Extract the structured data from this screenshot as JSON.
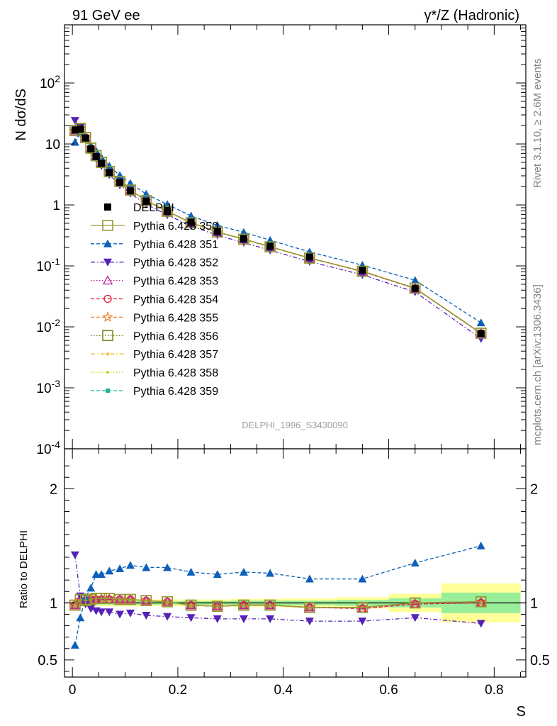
{
  "header": {
    "left_title": "91 GeV ee",
    "right_title": "γ*/Z (Hadronic)"
  },
  "side_labels": {
    "rivet": "Rivet 3.1.10, ≥ 2.6M events",
    "mcplots": "mcplots.cern.ch [arXiv:1306.3436]"
  },
  "watermark": "DELPHI_1996_S3430090",
  "chart_data": [
    {
      "type": "scatter",
      "panel": "main",
      "ylabel": "N dσ/dS",
      "xlabel": "",
      "yscale": "log",
      "ylim": [
        0.0001,
        900
      ],
      "xlim": [
        -0.015,
        0.86
      ],
      "y_tick_labels": [
        "10^-4",
        "10^-3",
        "10^-2",
        "10^-1",
        "1",
        "10",
        "10^2"
      ],
      "x": [
        0.005,
        0.015,
        0.025,
        0.035,
        0.045,
        0.055,
        0.07,
        0.09,
        0.11,
        0.14,
        0.18,
        0.225,
        0.275,
        0.325,
        0.375,
        0.45,
        0.55,
        0.65,
        0.775
      ],
      "series": [
        {
          "name": "DELPHI",
          "color": "#000000",
          "marker": "square-filled",
          "values": [
            17,
            17.5,
            12.5,
            8.3,
            6.2,
            4.8,
            3.4,
            2.35,
            1.7,
            1.15,
            0.78,
            0.52,
            0.37,
            0.28,
            0.21,
            0.14,
            0.085,
            0.043,
            0.0078
          ]
        },
        {
          "name": "Pythia 6.428 350",
          "color": "#999933",
          "marker": "square-open",
          "line": "solid",
          "ratio": [
            0.98,
            1.03,
            1.02,
            1.03,
            1.04,
            1.04,
            1.04,
            1.03,
            1.03,
            1.02,
            1.01,
            0.98,
            0.97,
            0.98,
            0.98,
            0.96,
            0.96,
            1.0,
            1.01
          ]
        },
        {
          "name": "Pythia 6.428 351",
          "color": "#0d5fba",
          "marker": "triangle-up-filled",
          "line": "dashed",
          "ratio": [
            0.63,
            0.87,
            1.05,
            1.13,
            1.25,
            1.25,
            1.28,
            1.3,
            1.33,
            1.31,
            1.31,
            1.27,
            1.25,
            1.27,
            1.26,
            1.21,
            1.21,
            1.35,
            1.5
          ]
        },
        {
          "name": "Pythia 6.428 352",
          "color": "#5522b8",
          "marker": "triangle-down-filled",
          "line": "dashdot",
          "ratio": [
            1.42,
            1.06,
            0.99,
            0.95,
            0.93,
            0.92,
            0.92,
            0.9,
            0.91,
            0.89,
            0.88,
            0.87,
            0.86,
            0.86,
            0.86,
            0.84,
            0.84,
            0.87,
            0.82
          ]
        },
        {
          "name": "Pythia 6.428 353",
          "color": "#bb2299",
          "marker": "triangle-up-open",
          "line": "dotted",
          "ratio": [
            0.98,
            1.02,
            1.02,
            1.03,
            1.03,
            1.03,
            1.03,
            1.03,
            1.03,
            1.02,
            1.01,
            0.98,
            0.97,
            0.98,
            0.98,
            0.96,
            0.95,
            0.99,
            1.0
          ]
        },
        {
          "name": "Pythia 6.428 354",
          "color": "#e8182e",
          "marker": "circle-open",
          "line": "dashed",
          "ratio": [
            0.98,
            1.02,
            1.02,
            1.03,
            1.03,
            1.03,
            1.03,
            1.03,
            1.03,
            1.02,
            1.01,
            0.98,
            0.97,
            0.98,
            0.98,
            0.96,
            0.95,
            0.99,
            1.0
          ]
        },
        {
          "name": "Pythia 6.428 355",
          "color": "#f07c28",
          "marker": "star-open",
          "line": "dashed",
          "ratio": [
            0.98,
            1.03,
            1.02,
            1.03,
            1.04,
            1.04,
            1.04,
            1.03,
            1.03,
            1.02,
            1.01,
            0.98,
            0.97,
            0.98,
            0.98,
            0.96,
            0.96,
            1.0,
            1.01
          ]
        },
        {
          "name": "Pythia 6.428 356",
          "color": "#7a8c1c",
          "marker": "square-open",
          "line": "dotted",
          "ratio": [
            0.98,
            1.03,
            1.02,
            1.03,
            1.04,
            1.04,
            1.04,
            1.03,
            1.03,
            1.02,
            1.01,
            0.98,
            0.97,
            0.98,
            0.98,
            0.96,
            0.96,
            1.0,
            1.01
          ]
        },
        {
          "name": "Pythia 6.428 357",
          "color": "#e6c01a",
          "marker": "dot",
          "line": "dashdot",
          "ratio": [
            0.98,
            1.03,
            1.02,
            1.03,
            1.04,
            1.04,
            1.04,
            1.03,
            1.03,
            1.02,
            1.01,
            0.98,
            0.97,
            0.98,
            0.98,
            0.96,
            0.96,
            1.0,
            1.01
          ]
        },
        {
          "name": "Pythia 6.428 358",
          "color": "#c8d21e",
          "marker": "dot",
          "line": "dotted",
          "ratio": [
            0.98,
            1.03,
            1.02,
            1.03,
            1.04,
            1.04,
            1.04,
            1.03,
            1.03,
            1.02,
            1.01,
            0.98,
            0.97,
            0.98,
            0.98,
            0.96,
            0.96,
            1.0,
            1.01
          ]
        },
        {
          "name": "Pythia 6.428 359",
          "color": "#18b890",
          "marker": "square-small-filled",
          "line": "dashed",
          "ratio": [
            0.98,
            1.03,
            1.02,
            1.03,
            1.04,
            1.04,
            1.04,
            1.03,
            1.03,
            1.02,
            1.01,
            0.98,
            0.97,
            0.98,
            0.98,
            0.96,
            0.96,
            1.0,
            1.01
          ]
        }
      ]
    },
    {
      "type": "scatter",
      "panel": "ratio",
      "ylabel": "Ratio to DELPHI",
      "xlabel": "S",
      "ylim": [
        0.35,
        2.35
      ],
      "xlim": [
        -0.015,
        0.86
      ],
      "y_ticks": [
        0.5,
        1,
        2
      ],
      "y_tick_labels": [
        "0.5",
        "1",
        "2"
      ],
      "x_ticks": [
        0,
        0.2,
        0.4,
        0.6,
        0.8
      ],
      "x_tick_labels": [
        "0",
        "0.2",
        "0.4",
        "0.6",
        "0.8"
      ],
      "uncertainty_bands": {
        "colors": {
          "inner": "#99ee99",
          "outer": "#ffff99"
        },
        "bins": [
          {
            "x0": 0.0,
            "x1": 0.3,
            "inner": 0.015,
            "outer": 0.03
          },
          {
            "x0": 0.3,
            "x1": 0.4,
            "inner": 0.02,
            "outer": 0.035
          },
          {
            "x0": 0.4,
            "x1": 0.5,
            "inner": 0.02,
            "outer": 0.04
          },
          {
            "x0": 0.5,
            "x1": 0.6,
            "inner": 0.025,
            "outer": 0.05
          },
          {
            "x0": 0.6,
            "x1": 0.7,
            "inner": 0.04,
            "outer": 0.08
          },
          {
            "x0": 0.7,
            "x1": 0.85,
            "inner": 0.09,
            "outer": 0.17
          }
        ]
      }
    }
  ]
}
